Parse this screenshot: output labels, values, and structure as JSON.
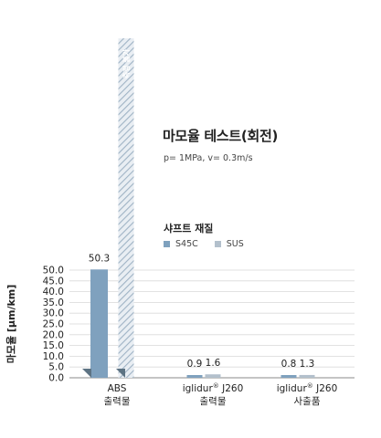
{
  "title": "마모율 테스트(회전)",
  "subtitle": "p= 1MPa, v= 0.3m/s",
  "legend": {
    "title": "샤프트 재질",
    "items": [
      {
        "label": "S45C",
        "color": "#7fa1be"
      },
      {
        "label": "SUS",
        "color": "#b3c0cc"
      }
    ]
  },
  "chart_data": {
    "type": "bar",
    "ylabel": "마모율 [μm/km]",
    "ylim": [
      0,
      50
    ],
    "yticks": [
      "0.0",
      "5.0",
      "10.0",
      "15.0",
      "20.0",
      "25.0",
      "30.0",
      "35.0",
      "40.0",
      "45.0",
      "50.0"
    ],
    "categories": [
      {
        "line1": "ABS",
        "line2": "출력물",
        "sup": ""
      },
      {
        "line1": "iglidur",
        "sup": "®",
        "line1b": " J260",
        "line2": "출력물"
      },
      {
        "line1": "iglidur",
        "sup": "®",
        "line1b": " J260",
        "line2": "사출품"
      }
    ],
    "series": [
      {
        "name": "S45C",
        "color": "#7fa1be",
        "values": [
          50.3,
          0.9,
          0.8
        ],
        "labels": [
          "50.3",
          "0.9",
          "0.8"
        ]
      },
      {
        "name": "SUS",
        "color": "#b3c0cc",
        "values": [
          null,
          1.6,
          1.3
        ],
        "labels": [
          "",
          "1.6",
          "1.3"
        ]
      }
    ],
    "annotations": {
      "overflow_bar_label": "측정 불가"
    }
  }
}
